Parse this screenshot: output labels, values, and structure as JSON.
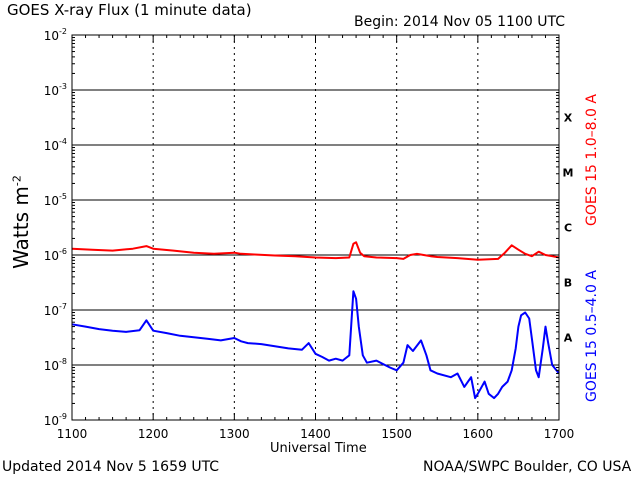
{
  "header": {
    "title": "GOES X-ray Flux (1 minute data)",
    "begin": "Begin: 2014 Nov 05 1100 UTC"
  },
  "footer": {
    "updated": "Updated 2014 Nov  5 1659 UTC",
    "credit": "NOAA/SWPC Boulder, CO USA"
  },
  "chart_data": {
    "type": "line",
    "xlabel": "Universal Time",
    "ylabel": {
      "base": "Watts m",
      "exp": "-2"
    },
    "xlim": [
      1100,
      1700
    ],
    "ylim": [
      1e-09,
      0.01
    ],
    "yscale": "log",
    "x_ticks": [
      "1100",
      "1200",
      "1300",
      "1400",
      "1500",
      "1600",
      "1700"
    ],
    "y_ticks": [
      {
        "base": "10",
        "exp": "-9"
      },
      {
        "base": "10",
        "exp": "-8"
      },
      {
        "base": "10",
        "exp": "-7"
      },
      {
        "base": "10",
        "exp": "-6"
      },
      {
        "base": "10",
        "exp": "-5"
      },
      {
        "base": "10",
        "exp": "-4"
      },
      {
        "base": "10",
        "exp": "-3"
      },
      {
        "base": "10",
        "exp": "-2"
      }
    ],
    "flare_classes": [
      "A",
      "B",
      "C",
      "M",
      "X"
    ],
    "colors": {
      "long": "#ff0000",
      "short": "#0000ff"
    },
    "series": [
      {
        "name": "GOES 15 1.0–8.0 A",
        "color": "#ff0000",
        "x": [
          "11:00",
          "11:15",
          "11:30",
          "11:45",
          "11:55",
          "12:00",
          "12:15",
          "12:30",
          "12:45",
          "13:00",
          "13:05",
          "13:15",
          "13:30",
          "13:45",
          "14:00",
          "14:15",
          "14:25",
          "14:28",
          "14:30",
          "14:33",
          "14:36",
          "14:45",
          "15:00",
          "15:05",
          "15:10",
          "15:15",
          "15:20",
          "15:25",
          "15:30",
          "15:45",
          "16:00",
          "16:15",
          "16:20",
          "16:25",
          "16:30",
          "16:35",
          "16:40",
          "16:45",
          "16:50",
          "16:55",
          "17:00"
        ],
        "values": [
          1.3e-06,
          1.25e-06,
          1.2e-06,
          1.3e-06,
          1.45e-06,
          1.3e-06,
          1.2e-06,
          1.1e-06,
          1.05e-06,
          1.1e-06,
          1.05e-06,
          1.02e-06,
          9.8e-07,
          9.5e-07,
          9e-07,
          8.8e-07,
          9e-07,
          1.6e-06,
          1.7e-06,
          1.1e-06,
          9.5e-07,
          9e-07,
          8.8e-07,
          8.5e-07,
          1e-06,
          1.05e-06,
          1e-06,
          9.5e-07,
          9.2e-07,
          8.8e-07,
          8.2e-07,
          8.5e-07,
          1.1e-06,
          1.5e-06,
          1.25e-06,
          1.05e-06,
          9.5e-07,
          1.15e-06,
          1e-06,
          9.5e-07,
          9e-07
        ]
      },
      {
        "name": "GOES 15 0.5–4.0 A",
        "color": "#0000ff",
        "x": [
          "11:00",
          "11:10",
          "11:20",
          "11:30",
          "11:40",
          "11:50",
          "11:55",
          "12:00",
          "12:10",
          "12:20",
          "12:30",
          "12:40",
          "12:50",
          "13:00",
          "13:05",
          "13:10",
          "13:20",
          "13:30",
          "13:40",
          "13:50",
          "13:55",
          "14:00",
          "14:05",
          "14:10",
          "14:15",
          "14:20",
          "14:25",
          "14:28",
          "14:30",
          "14:32",
          "14:35",
          "14:38",
          "14:45",
          "14:55",
          "15:00",
          "15:05",
          "15:08",
          "15:12",
          "15:18",
          "15:22",
          "15:25",
          "15:30",
          "15:40",
          "15:45",
          "15:50",
          "15:55",
          "15:58",
          "16:00",
          "16:05",
          "16:08",
          "16:12",
          "16:15",
          "16:18",
          "16:22",
          "16:25",
          "16:28",
          "16:30",
          "16:32",
          "16:35",
          "16:38",
          "16:40",
          "16:43",
          "16:45",
          "16:48",
          "16:50",
          "16:52",
          "16:55",
          "17:00"
        ],
        "values": [
          5.5e-08,
          5e-08,
          4.5e-08,
          4.2e-08,
          4e-08,
          4.3e-08,
          6.5e-08,
          4.2e-08,
          3.8e-08,
          3.4e-08,
          3.2e-08,
          3e-08,
          2.8e-08,
          3.1e-08,
          2.7e-08,
          2.5e-08,
          2.4e-08,
          2.2e-08,
          2e-08,
          1.9e-08,
          2.5e-08,
          1.6e-08,
          1.4e-08,
          1.2e-08,
          1.3e-08,
          1.2e-08,
          1.5e-08,
          2.2e-07,
          1.6e-07,
          5e-08,
          1.5e-08,
          1.1e-08,
          1.2e-08,
          9e-09,
          8e-09,
          1.1e-08,
          2.3e-08,
          1.8e-08,
          2.8e-08,
          1.5e-08,
          8e-09,
          7e-09,
          6e-09,
          7e-09,
          4e-09,
          6e-09,
          2.5e-09,
          3e-09,
          5e-09,
          3e-09,
          2.5e-09,
          3e-09,
          4e-09,
          5e-09,
          8e-09,
          2e-08,
          5e-08,
          8e-08,
          9e-08,
          7e-08,
          3e-08,
          8e-09,
          6e-09,
          2e-08,
          5e-08,
          2.5e-08,
          1e-08,
          7e-09
        ]
      }
    ]
  }
}
